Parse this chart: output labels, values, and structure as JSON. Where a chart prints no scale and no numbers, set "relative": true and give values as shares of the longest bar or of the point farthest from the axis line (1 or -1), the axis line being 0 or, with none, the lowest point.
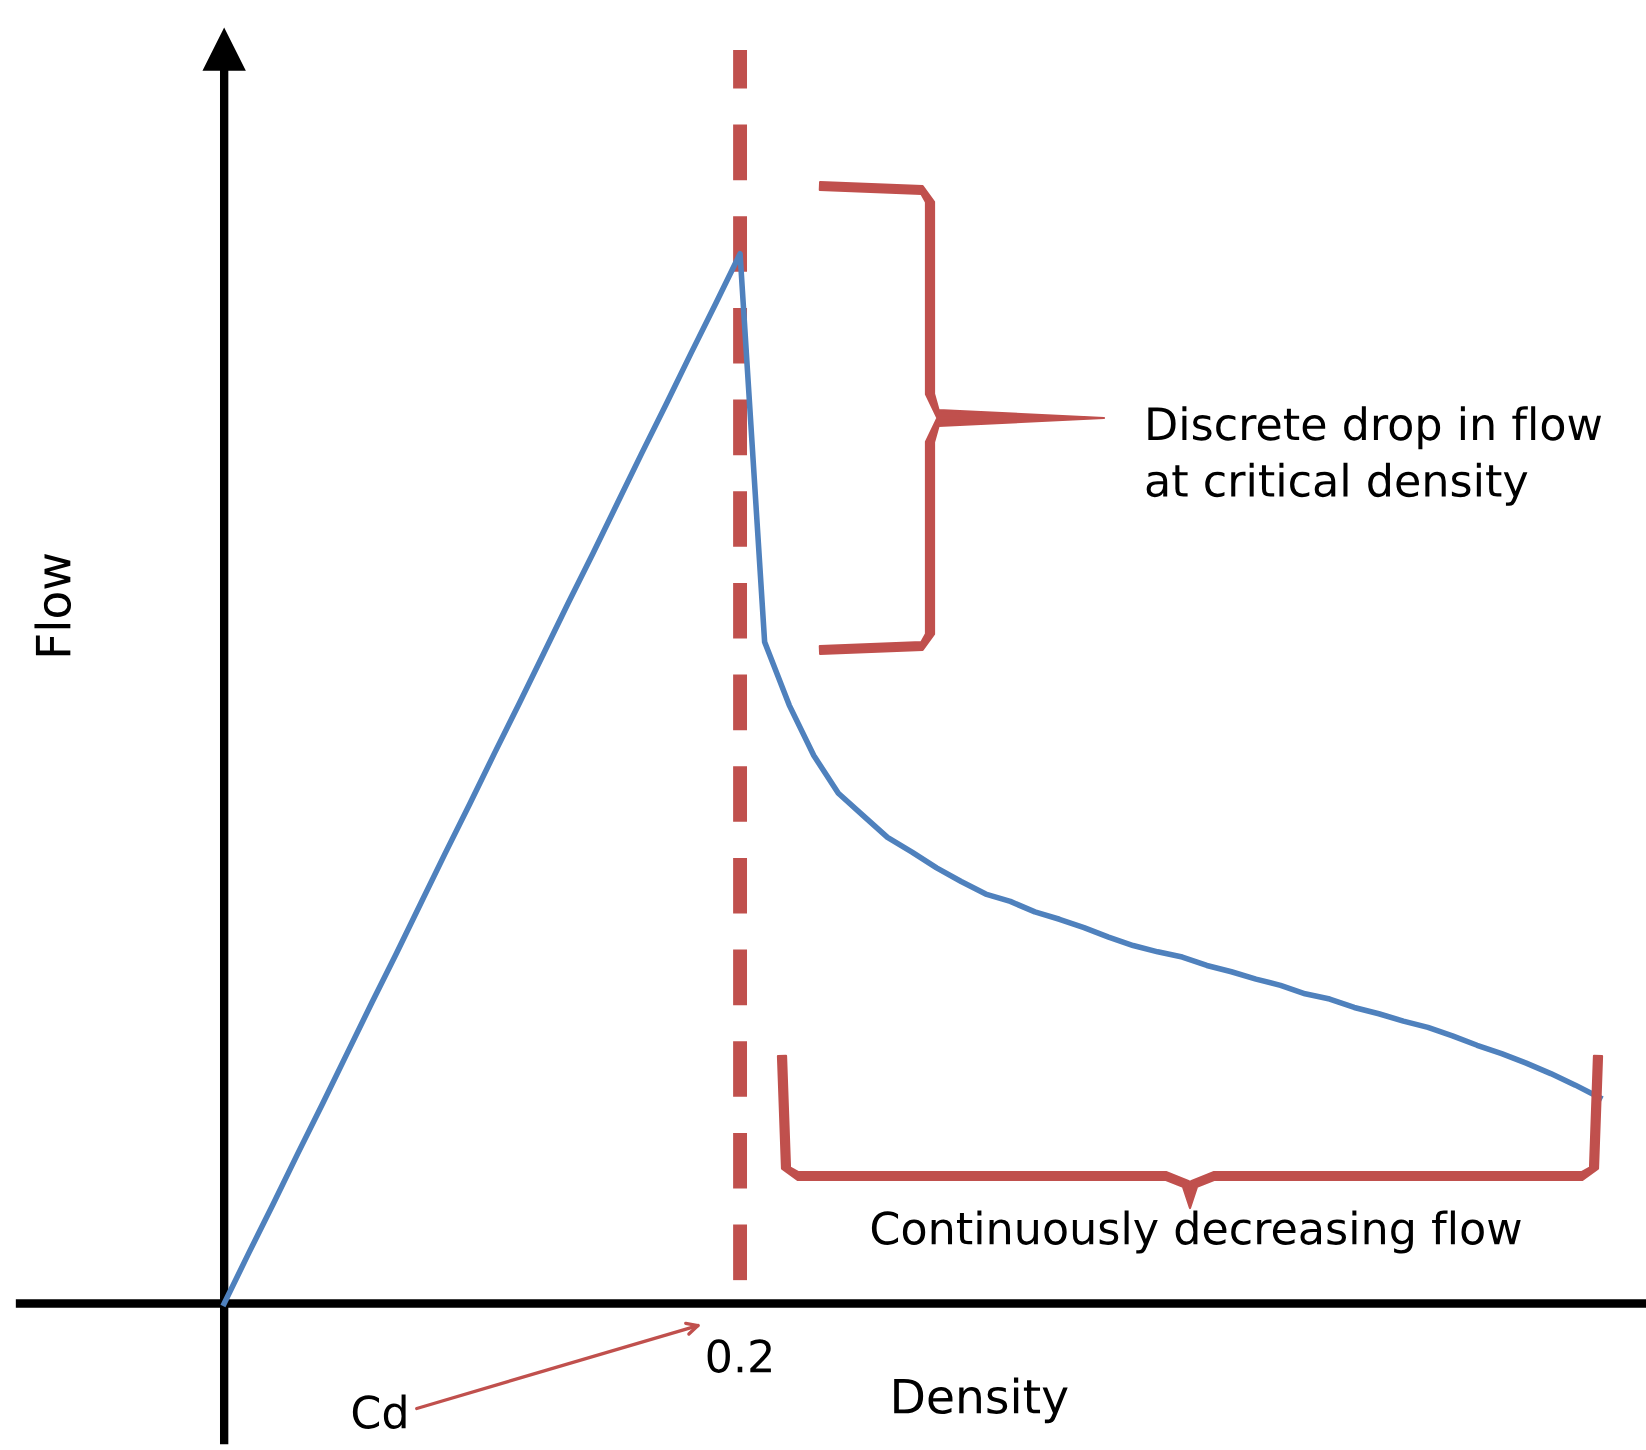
{
  "chart_data": {
    "type": "line",
    "relative": true,
    "xlabel": "Density",
    "ylabel": "Flow",
    "categories": [
      null,
      null,
      null,
      null,
      null,
      null,
      null,
      null,
      null,
      null,
      null,
      null,
      null,
      null,
      null,
      null,
      null,
      null,
      null,
      null,
      null,
      null,
      null,
      null,
      null,
      null,
      null,
      null,
      null,
      null,
      null,
      null,
      null,
      null,
      null,
      null,
      null,
      null,
      null,
      null,
      null,
      null,
      null,
      null,
      null,
      null,
      null,
      null,
      null,
      null,
      null,
      null,
      null,
      null,
      null,
      null,
      null
    ],
    "series": [
      {
        "color": "#4f81bd",
        "values": [
          0,
          0.048,
          0.095,
          0.143,
          0.19,
          0.238,
          0.286,
          0.333,
          0.381,
          0.429,
          0.476,
          0.524,
          0.571,
          0.619,
          0.667,
          0.714,
          0.762,
          0.81,
          0.857,
          0.905,
          0.952,
          1.0,
          0.63,
          0.57,
          0.522,
          0.486,
          0.465,
          0.444,
          0.43,
          0.415,
          0.402,
          0.39,
          0.383,
          0.373,
          0.366,
          0.358,
          0.349,
          0.341,
          0.335,
          0.33,
          0.322,
          0.316,
          0.309,
          0.303,
          0.295,
          0.29,
          0.282,
          0.276,
          0.269,
          0.263,
          0.255,
          0.246,
          0.238,
          0.229,
          0.219,
          0.208,
          0.196
        ]
      }
    ],
    "annotations": [
      "Discrete drop in flow\nat critical density",
      "Continuously decreasing flow",
      "0.2",
      "Cd"
    ],
    "marker": "none",
    "line_style": "solid"
  }
}
